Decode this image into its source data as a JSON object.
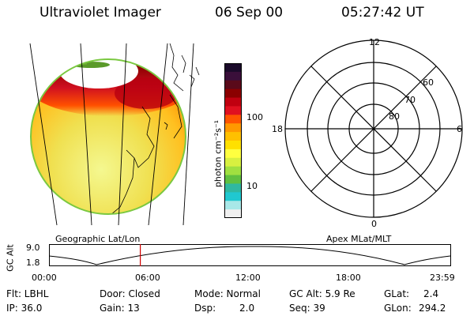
{
  "header": {
    "title": "Ultraviolet Imager",
    "date": "06 Sep 00",
    "time": "05:27:42 UT"
  },
  "colorbar": {
    "unit_label": "photon cm⁻²s⁻¹",
    "tick_100": "100",
    "tick_10": "10",
    "colors": [
      "#1a0a2a",
      "#3a0f3a",
      "#5a0a1a",
      "#8b0000",
      "#c00010",
      "#e01020",
      "#ff5500",
      "#ff9900",
      "#ffc000",
      "#ffe000",
      "#ffff40",
      "#d8f040",
      "#a0e040",
      "#60c040",
      "#30b8a0",
      "#20c8d0",
      "#a8e8e8",
      "#f0f0f0"
    ]
  },
  "earth_image": {
    "projection_label": "Geographic Lat/Lon"
  },
  "polar_plot": {
    "projection_label": "Apex MLat/MLT",
    "mlt_top": "12",
    "mlt_left": "18",
    "mlt_right": "6",
    "mlt_bottom": "0",
    "lat_60": "60",
    "lat_70": "70",
    "lat_80": "80"
  },
  "orbit_plot": {
    "ylabel": "GC Alt",
    "y_max": "9.0",
    "y_min": "1.8",
    "x_ticks": [
      "00:00",
      "06:00",
      "12:00",
      "18:00",
      "23:59"
    ],
    "marker_hour": 5.46
  },
  "footer": {
    "flt": "Flt: LBHL",
    "door": "Door: Closed",
    "mode": "Mode: Normal",
    "gc_alt": "GC Alt: 5.9 Re",
    "glat_label": "GLat:",
    "glat_value": "2.4",
    "ip": "IP: 36.0",
    "gain": "Gain: 13",
    "dsp": "Dsp:",
    "dsp_value": "2.0",
    "seq": "Seq: 39",
    "glon_label": "GLon:",
    "glon_value": "294.2"
  }
}
